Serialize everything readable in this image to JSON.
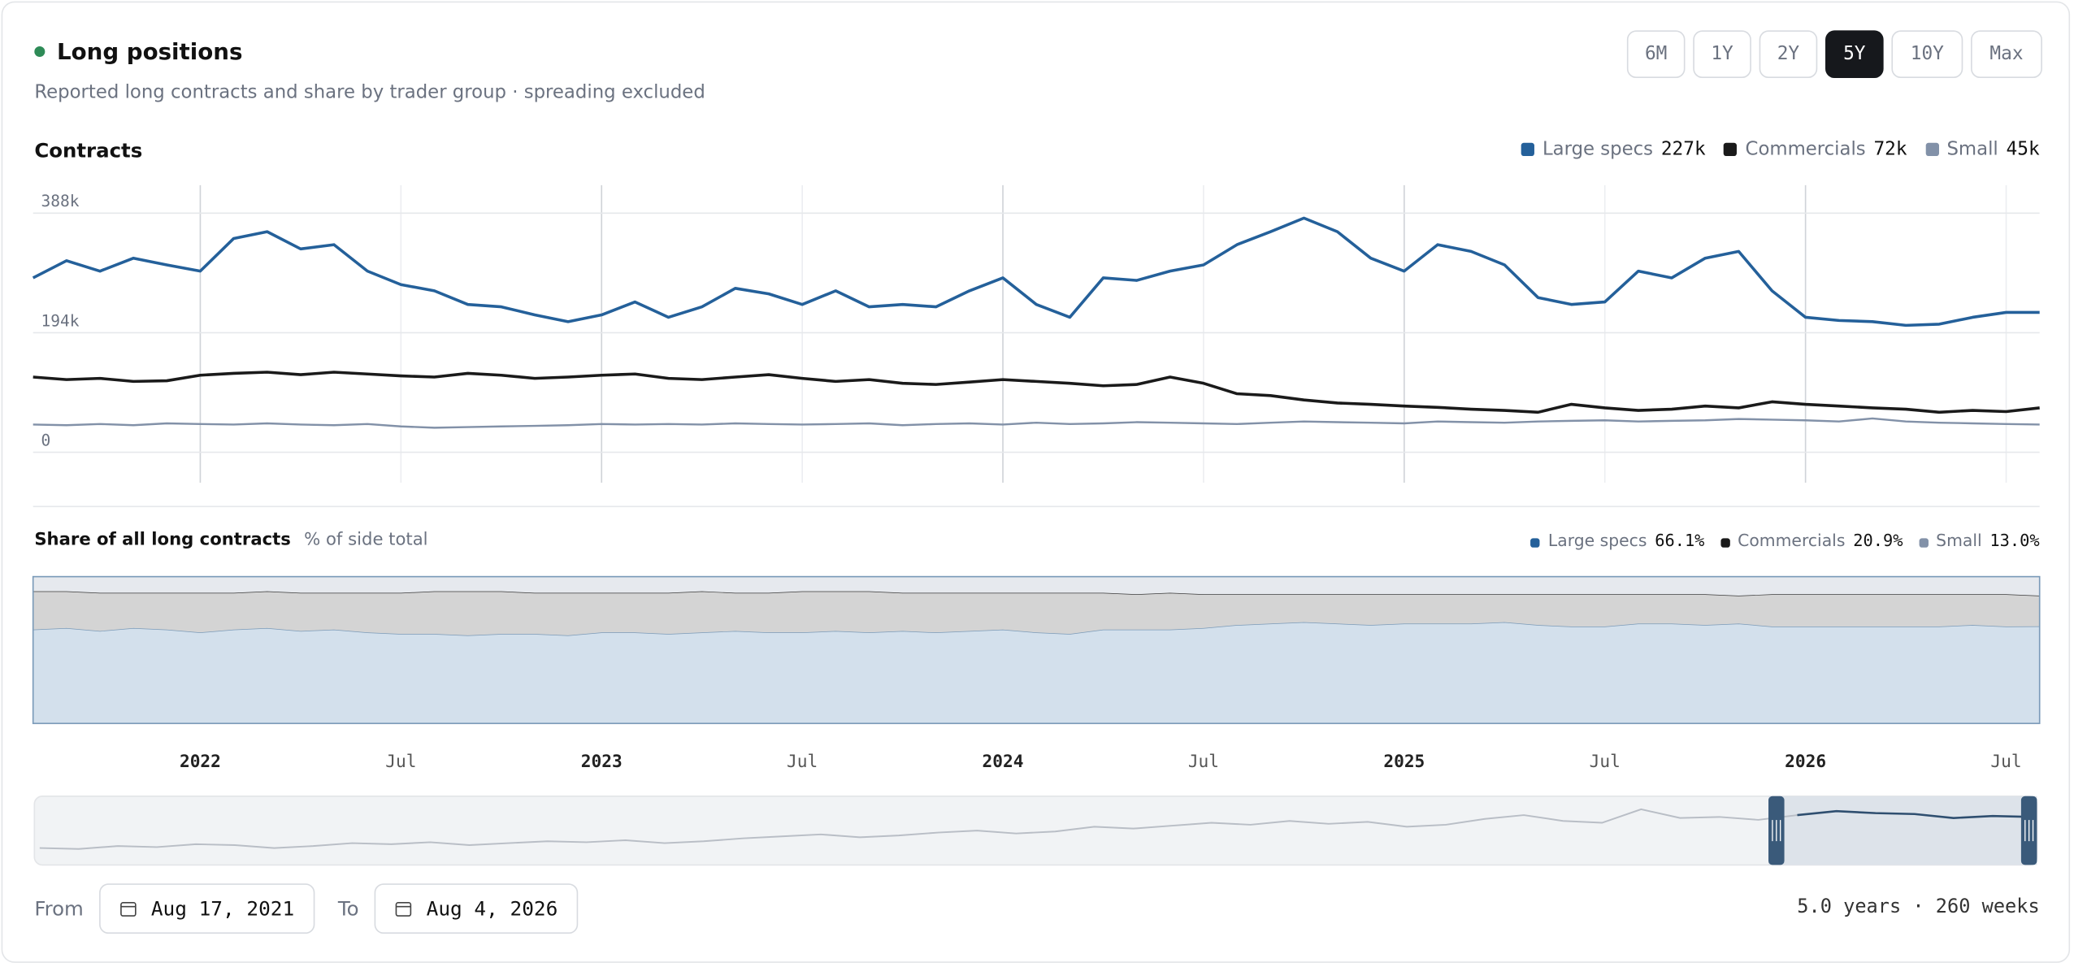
{
  "header": {
    "title": "Long positions",
    "subtitle": "Reported long contracts and share by trader group · spreading excluded"
  },
  "range_buttons": {
    "options": [
      "6M",
      "1Y",
      "2Y",
      "5Y",
      "10Y",
      "Max"
    ],
    "active": 3
  },
  "chart_data": [
    {
      "type": "line",
      "title": "Contracts",
      "x": [
        "2021-08",
        "2021-09",
        "2021-10",
        "2021-11",
        "2021-12",
        "2022-01",
        "2022-02",
        "2022-03",
        "2022-04",
        "2022-05",
        "2022-06",
        "2022-07",
        "2022-08",
        "2022-09",
        "2022-10",
        "2022-11",
        "2022-12",
        "2023-01",
        "2023-02",
        "2023-03",
        "2023-04",
        "2023-05",
        "2023-06",
        "2023-07",
        "2023-08",
        "2023-09",
        "2023-10",
        "2023-11",
        "2023-12",
        "2024-01",
        "2024-02",
        "2024-03",
        "2024-04",
        "2024-05",
        "2024-06",
        "2024-07",
        "2024-08",
        "2024-09",
        "2024-10",
        "2024-11",
        "2024-12",
        "2025-01",
        "2025-02",
        "2025-03",
        "2025-04",
        "2025-05",
        "2025-06",
        "2025-07",
        "2025-08",
        "2025-09",
        "2025-10",
        "2025-11",
        "2025-12",
        "2026-01",
        "2026-02",
        "2026-03",
        "2026-04",
        "2026-05",
        "2026-06",
        "2026-07",
        "2026-08"
      ],
      "xlim": [
        "2021-08",
        "2026-08"
      ],
      "xticks": [
        {
          "value": "2022-01",
          "label": "2022"
        },
        {
          "value": "2022-07",
          "label": "Jul"
        },
        {
          "value": "2023-01",
          "label": "2023"
        },
        {
          "value": "2023-07",
          "label": "Jul"
        },
        {
          "value": "2024-01",
          "label": "2024"
        },
        {
          "value": "2024-07",
          "label": "Jul"
        },
        {
          "value": "2025-01",
          "label": "2025"
        },
        {
          "value": "2025-07",
          "label": "Jul"
        },
        {
          "value": "2026-01",
          "label": "2026"
        },
        {
          "value": "2026-07",
          "label": "Jul"
        }
      ],
      "ylim": [
        0,
        412000
      ],
      "yticks": [
        {
          "value": 388000,
          "label": "388k"
        },
        {
          "value": 194000,
          "label": "194k"
        },
        0
      ],
      "grid": true,
      "series": [
        {
          "name": "Large specs",
          "color": "#24609a",
          "legend_label": "227k",
          "values": [
            283000,
            311000,
            294000,
            315000,
            304000,
            294000,
            347000,
            358000,
            330000,
            337000,
            294000,
            272000,
            262000,
            240000,
            236000,
            223000,
            212000,
            223000,
            244000,
            219000,
            236000,
            266000,
            257000,
            240000,
            262000,
            236000,
            240000,
            236000,
            262000,
            283000,
            240000,
            219000,
            283000,
            279000,
            294000,
            304000,
            337000,
            358000,
            380000,
            358000,
            315000,
            294000,
            337000,
            326000,
            304000,
            251000,
            240000,
            244000,
            294000,
            283000,
            315000,
            326000,
            262000,
            219000,
            214000,
            212000,
            206000,
            208000,
            219000,
            227000,
            227000
          ]
        },
        {
          "name": "Commercials",
          "color": "#1a1a1a",
          "legend_label": "72k",
          "values": [
            122000,
            118000,
            120000,
            115000,
            116000,
            125000,
            128000,
            130000,
            126000,
            130000,
            127000,
            124000,
            122000,
            128000,
            125000,
            120000,
            122000,
            125000,
            127000,
            120000,
            118000,
            122000,
            126000,
            120000,
            115000,
            118000,
            112000,
            110000,
            114000,
            118000,
            115000,
            112000,
            108000,
            110000,
            122000,
            112000,
            95000,
            92000,
            85000,
            80000,
            78000,
            75000,
            73000,
            70000,
            68000,
            65000,
            78000,
            72000,
            68000,
            70000,
            75000,
            72000,
            82000,
            78000,
            75000,
            72000,
            70000,
            65000,
            68000,
            66000,
            72000
          ]
        },
        {
          "name": "Small",
          "color": "#8291a8",
          "legend_label": "45k",
          "values": [
            45000,
            44000,
            46000,
            44000,
            47000,
            46000,
            45000,
            47000,
            45000,
            44000,
            46000,
            42000,
            40000,
            41000,
            42000,
            43000,
            44000,
            46000,
            45000,
            46000,
            45000,
            47000,
            46000,
            45000,
            46000,
            47000,
            44000,
            46000,
            47000,
            45000,
            48000,
            46000,
            47000,
            49000,
            48000,
            47000,
            46000,
            48000,
            50000,
            49000,
            48000,
            47000,
            50000,
            49000,
            48000,
            50000,
            51000,
            52000,
            50000,
            51000,
            52000,
            54000,
            53000,
            52000,
            50000,
            55000,
            50000,
            48000,
            47000,
            46000,
            45000
          ]
        }
      ]
    },
    {
      "type": "area",
      "stacked": true,
      "title": "Share of all long contracts",
      "subtitle": "% of side total",
      "ylim": [
        0,
        100
      ],
      "series": [
        {
          "name": "Large specs",
          "color": "#d3e0ec",
          "line_color": "#7a9ab8",
          "legend_color": "#24609a",
          "legend_label": "66.1%",
          "values": [
            64,
            65,
            63,
            65,
            64,
            62,
            64,
            65,
            63,
            64,
            62,
            61,
            61,
            60,
            61,
            61,
            60,
            62,
            62,
            61,
            62,
            63,
            62,
            62,
            63,
            62,
            63,
            62,
            63,
            64,
            62,
            61,
            64,
            64,
            64,
            65,
            67,
            68,
            69,
            68,
            67,
            68,
            68,
            68,
            69,
            67,
            66,
            66,
            68,
            68,
            67,
            68,
            66,
            66,
            66,
            66,
            66,
            66,
            67,
            66,
            66.1
          ]
        },
        {
          "name": "Commercials",
          "color": "#d4d4d4",
          "line_color": "#3a3a3a",
          "legend_color": "#1a1a1a",
          "legend_label": "20.9%",
          "values": [
            26,
            25,
            26,
            24,
            25,
            27,
            25,
            25,
            26,
            25,
            27,
            28,
            29,
            30,
            29,
            28,
            29,
            27,
            27,
            28,
            28,
            26,
            27,
            28,
            27,
            28,
            26,
            27,
            26,
            25,
            27,
            28,
            25,
            24,
            25,
            23,
            21,
            20,
            19,
            20,
            21,
            20,
            20,
            20,
            19,
            21,
            22,
            22,
            20,
            20,
            21,
            19,
            22,
            22,
            22,
            22,
            22,
            22,
            21,
            22,
            20.9
          ]
        },
        {
          "name": "Small",
          "color": "#e6e9ee",
          "line_color": "#9aa3b0",
          "legend_color": "#8291a8",
          "legend_label": "13.0%",
          "values": [
            10,
            10,
            11,
            11,
            11,
            11,
            11,
            10,
            11,
            11,
            11,
            11,
            10,
            10,
            10,
            11,
            11,
            11,
            11,
            11,
            10,
            11,
            11,
            10,
            10,
            10,
            11,
            11,
            11,
            11,
            11,
            11,
            11,
            12,
            11,
            12,
            12,
            12,
            12,
            12,
            12,
            12,
            12,
            12,
            12,
            12,
            12,
            12,
            12,
            12,
            12,
            13,
            12,
            12,
            12,
            12,
            12,
            12,
            12,
            12,
            13.0
          ]
        }
      ]
    },
    {
      "type": "navigator",
      "color": "#b9bec6",
      "selected_color": "#2f4f70",
      "ylim": [
        0,
        300000
      ],
      "values": [
        60000,
        55000,
        70000,
        65000,
        80000,
        75000,
        60000,
        70000,
        85000,
        80000,
        90000,
        75000,
        85000,
        95000,
        90000,
        100000,
        85000,
        95000,
        110000,
        120000,
        130000,
        115000,
        125000,
        140000,
        150000,
        135000,
        145000,
        170000,
        160000,
        175000,
        190000,
        180000,
        200000,
        185000,
        195000,
        170000,
        180000,
        210000,
        230000,
        200000,
        190000,
        260000,
        215000,
        220000,
        205000,
        230000,
        250000,
        240000,
        235000,
        215000,
        225000,
        220000
      ]
    }
  ],
  "footer": {
    "from_label": "From",
    "from": "Aug 17, 2021",
    "to_label": "To",
    "to": "Aug 4, 2026",
    "summary": "5.0 years · 260 weeks"
  }
}
